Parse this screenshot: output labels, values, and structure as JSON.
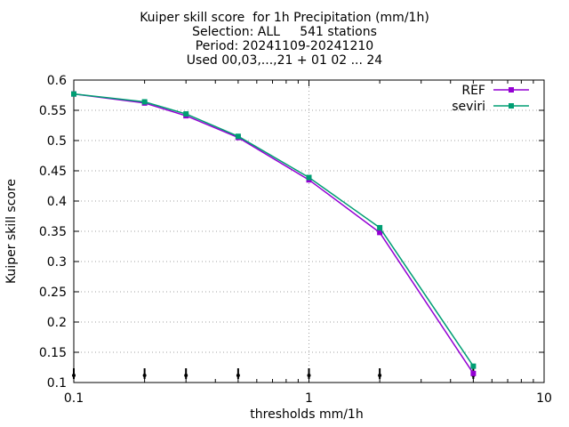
{
  "chart_data": {
    "type": "line",
    "title_lines": [
      "Kuiper skill score  for 1h Precipitation (mm/1h)",
      "Selection: ALL     541 stations",
      "Period: 20241109-20241210",
      "Used 00,03,...,21 + 01 02 ... 24"
    ],
    "xlabel": "thresholds mm/1h",
    "ylabel": "Kuiper skill score",
    "x_scale": "log",
    "xlim": [
      0.1,
      10
    ],
    "ylim": [
      0.1,
      0.6
    ],
    "x_ticks": [
      0.1,
      1,
      10
    ],
    "x_tick_labels": [
      "0.1",
      "1",
      "10"
    ],
    "y_ticks": [
      0.1,
      0.15,
      0.2,
      0.25,
      0.3,
      0.35,
      0.4,
      0.45,
      0.5,
      0.55,
      0.6
    ],
    "y_tick_labels": [
      "0.1",
      "0.15",
      "0.2",
      "0.25",
      "0.3",
      "0.35",
      "0.4",
      "0.45",
      "0.5",
      "0.55",
      "0.6"
    ],
    "grid": true,
    "legend_position": "top-right",
    "x": [
      0.1,
      0.2,
      0.3,
      0.5,
      1,
      2,
      5
    ],
    "series": [
      {
        "name": "REF",
        "color": "#9400d3",
        "values": [
          0.577,
          0.562,
          0.541,
          0.505,
          0.435,
          0.348,
          0.115
        ]
      },
      {
        "name": "seviri",
        "color": "#009e73",
        "values": [
          0.577,
          0.564,
          0.544,
          0.507,
          0.439,
          0.356,
          0.127
        ]
      }
    ],
    "annotation_marks": {
      "description": "small vertical tick marks near bottom of plot at each threshold",
      "x": [
        0.1,
        0.2,
        0.3,
        0.5,
        1,
        2,
        5
      ]
    }
  }
}
